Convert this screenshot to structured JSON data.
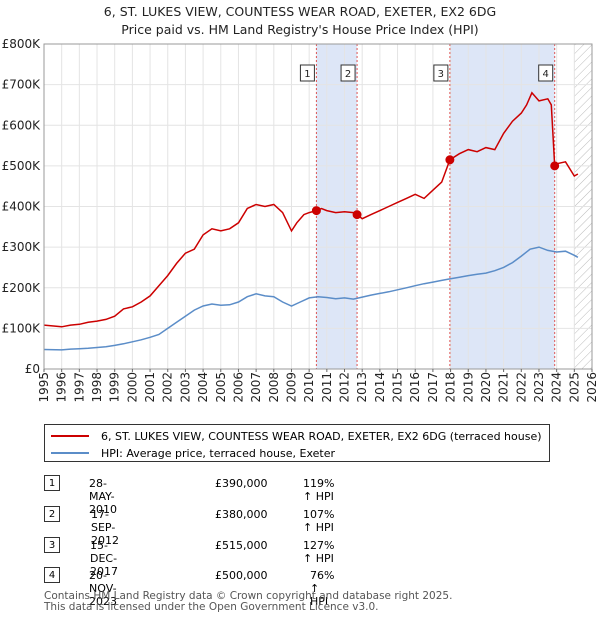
{
  "header": {
    "title_line1": "6, ST. LUKES VIEW, COUNTESS WEAR ROAD, EXETER, EX2 6DG",
    "title_line2": "Price paid vs. HM Land Registry's House Price Index (HPI)"
  },
  "colors": {
    "property": "#cc0000",
    "hpi": "#5b8dc8",
    "shade": "#dde6f7",
    "grid": "#e4e4e4",
    "marker_line": "#dd5555",
    "axis_text": "#222222"
  },
  "chart_data": {
    "type": "line",
    "title": "Price paid vs. HM Land Registry's House Price Index (HPI)",
    "xlim": [
      1995,
      2026
    ],
    "ylim": [
      0,
      800000
    ],
    "x_ticks": [
      1995,
      1996,
      1997,
      1998,
      1999,
      2000,
      2001,
      2002,
      2003,
      2004,
      2005,
      2006,
      2007,
      2008,
      2009,
      2010,
      2011,
      2012,
      2013,
      2014,
      2015,
      2016,
      2017,
      2018,
      2019,
      2020,
      2021,
      2022,
      2023,
      2024,
      2025,
      2026
    ],
    "y_ticks": [
      {
        "value": 0,
        "label": "£0"
      },
      {
        "value": 100000,
        "label": "£100K"
      },
      {
        "value": 200000,
        "label": "£200K"
      },
      {
        "value": 300000,
        "label": "£300K"
      },
      {
        "value": 400000,
        "label": "£400K"
      },
      {
        "value": 500000,
        "label": "£500K"
      },
      {
        "value": 600000,
        "label": "£600K"
      },
      {
        "value": 700000,
        "label": "£700K"
      },
      {
        "value": 800000,
        "label": "£800K"
      }
    ],
    "shaded_ranges": [
      [
        2010.41,
        2012.71
      ],
      [
        2017.96,
        2023.89
      ]
    ],
    "future_hatch_from": 2025.0,
    "series": [
      {
        "name": "6, ST. LUKES VIEW, COUNTESS WEAR ROAD, EXETER, EX2 6DG (terraced house)",
        "x": [
          1995.0,
          1996.0,
          1996.5,
          1997.0,
          1997.5,
          1998.0,
          1998.5,
          1999.0,
          1999.5,
          2000.0,
          2000.5,
          2001.0,
          2001.5,
          2002.0,
          2002.5,
          2003.0,
          2003.5,
          2004.0,
          2004.5,
          2005.0,
          2005.5,
          2006.0,
          2006.5,
          2007.0,
          2007.5,
          2008.0,
          2008.5,
          2009.0,
          2009.3,
          2009.7,
          2010.0,
          2010.41,
          2010.7,
          2011.0,
          2011.5,
          2012.0,
          2012.5,
          2012.71,
          2013.0,
          2013.5,
          2014.0,
          2014.5,
          2015.0,
          2015.5,
          2016.0,
          2016.5,
          2017.0,
          2017.5,
          2017.96,
          2018.5,
          2019.0,
          2019.5,
          2020.0,
          2020.5,
          2021.0,
          2021.5,
          2022.0,
          2022.3,
          2022.6,
          2023.0,
          2023.5,
          2023.7,
          2023.89,
          2024.0,
          2024.5,
          2025.0,
          2025.2
        ],
        "y": [
          108000,
          104000,
          108000,
          110000,
          115000,
          118000,
          122000,
          130000,
          148000,
          153000,
          165000,
          180000,
          205000,
          230000,
          260000,
          285000,
          295000,
          330000,
          345000,
          340000,
          345000,
          360000,
          395000,
          405000,
          400000,
          405000,
          385000,
          340000,
          360000,
          380000,
          385000,
          390000,
          395000,
          390000,
          385000,
          387000,
          385000,
          380000,
          370000,
          380000,
          390000,
          400000,
          410000,
          420000,
          430000,
          420000,
          440000,
          460000,
          515000,
          530000,
          540000,
          535000,
          545000,
          540000,
          580000,
          610000,
          630000,
          650000,
          680000,
          660000,
          665000,
          650000,
          500000,
          505000,
          510000,
          475000,
          480000
        ]
      },
      {
        "name": "HPI: Average price, terraced house, Exeter",
        "x": [
          1995.0,
          1996.0,
          1996.5,
          1997.0,
          1997.5,
          1998.0,
          1998.5,
          1999.0,
          1999.5,
          2000.0,
          2000.5,
          2001.0,
          2001.5,
          2002.0,
          2002.5,
          2003.0,
          2003.5,
          2004.0,
          2004.5,
          2005.0,
          2005.5,
          2006.0,
          2006.5,
          2007.0,
          2007.5,
          2008.0,
          2008.5,
          2009.0,
          2009.5,
          2010.0,
          2010.5,
          2011.0,
          2011.5,
          2012.0,
          2012.5,
          2013.0,
          2013.5,
          2014.0,
          2014.5,
          2015.0,
          2015.5,
          2016.0,
          2016.5,
          2017.0,
          2017.5,
          2018.0,
          2018.5,
          2019.0,
          2019.5,
          2020.0,
          2020.5,
          2021.0,
          2021.5,
          2022.0,
          2022.5,
          2023.0,
          2023.5,
          2024.0,
          2024.5,
          2025.0,
          2025.2
        ],
        "y": [
          48000,
          47000,
          49000,
          50000,
          51000,
          53000,
          55000,
          58000,
          62000,
          67000,
          72000,
          78000,
          85000,
          100000,
          115000,
          130000,
          145000,
          155000,
          160000,
          157000,
          158000,
          165000,
          178000,
          185000,
          180000,
          178000,
          165000,
          155000,
          165000,
          175000,
          178000,
          176000,
          173000,
          175000,
          172000,
          177000,
          182000,
          186000,
          190000,
          195000,
          200000,
          205000,
          210000,
          214000,
          218000,
          222000,
          226000,
          230000,
          233000,
          236000,
          242000,
          250000,
          262000,
          278000,
          295000,
          300000,
          292000,
          288000,
          290000,
          280000,
          275000
        ]
      }
    ],
    "sales": [
      {
        "id": "1",
        "x": 2010.41,
        "y": 390000
      },
      {
        "id": "2",
        "x": 2012.71,
        "y": 380000
      },
      {
        "id": "3",
        "x": 2017.96,
        "y": 515000
      },
      {
        "id": "4",
        "x": 2023.89,
        "y": 500000
      }
    ]
  },
  "legend": {
    "property_label": "6, ST. LUKES VIEW, COUNTESS WEAR ROAD, EXETER, EX2 6DG (terraced house)",
    "hpi_label": "HPI: Average price, terraced house, Exeter"
  },
  "transactions": [
    {
      "num": "1",
      "date": "28-MAY-2010",
      "price": "£390,000",
      "hpi": "119% ↑ HPI"
    },
    {
      "num": "2",
      "date": "17-SEP-2012",
      "price": "£380,000",
      "hpi": "107% ↑ HPI"
    },
    {
      "num": "3",
      "date": "15-DEC-2017",
      "price": "£515,000",
      "hpi": "127% ↑ HPI"
    },
    {
      "num": "4",
      "date": "20-NOV-2023",
      "price": "£500,000",
      "hpi": "76% ↑ HPI"
    }
  ],
  "footer": {
    "line1": "Contains HM Land Registry data © Crown copyright and database right 2025.",
    "line2": "This data is licensed under the Open Government Licence v3.0."
  }
}
